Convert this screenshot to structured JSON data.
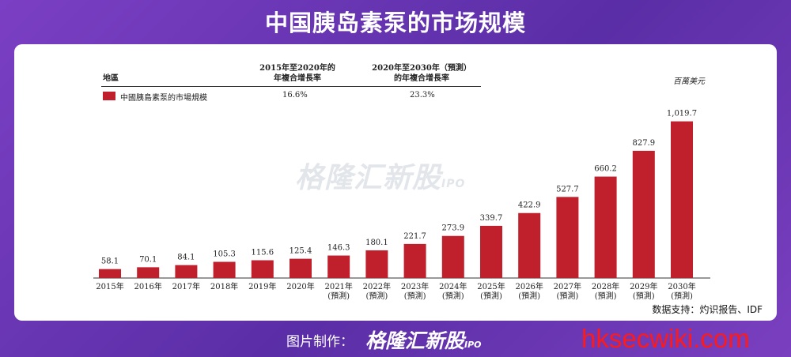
{
  "page": {
    "title": "中国胰岛素泵的市场规模",
    "footer_label": "图片制作：",
    "footer_brand": "格隆汇新股",
    "footer_brand_tag": "IPO",
    "watermark": "格隆汇新股",
    "watermark_tag": "IPO",
    "site_watermark": "hksecwiki.com",
    "source": "数据支持：灼识报告、IDF",
    "unit": "百萬美元"
  },
  "legend": {
    "region_header": "地區",
    "cagr1_header_line1": "2015年至2020年的",
    "cagr1_header_line2": "年複合增長率",
    "cagr2_header_line1": "2020年至2030年（預測）",
    "cagr2_header_line2": "的年複合增長率",
    "series_label": "中國胰島素泵的市場規模",
    "cagr1": "16.6%",
    "cagr2": "23.3%",
    "color": "#c0202c"
  },
  "chart_data": {
    "type": "bar",
    "categories": [
      "2015年",
      "2016年",
      "2017年",
      "2018年",
      "2019年",
      "2020年",
      "2021年\n(預測)",
      "2022年\n(預測)",
      "2023年\n(預測)",
      "2024年\n(預測)",
      "2025年\n(預測)",
      "2026年\n(預測)",
      "2027年\n(預測)",
      "2028年\n(預測)",
      "2029年\n(預測)",
      "2030年\n(預測)"
    ],
    "series": [
      {
        "name": "中國胰島素泵的市場規模",
        "values": [
          58.1,
          70.1,
          84.1,
          105.3,
          115.6,
          125.4,
          146.3,
          180.1,
          221.7,
          273.9,
          339.7,
          422.9,
          527.7,
          660.2,
          827.9,
          1019.7
        ],
        "labels": [
          "58.1",
          "70.1",
          "84.1",
          "105.3",
          "115.6",
          "125.4",
          "146.3",
          "180.1",
          "221.7",
          "273.9",
          "339.7",
          "422.9",
          "527.7",
          "660.2",
          "827.9",
          "1,019.7"
        ]
      }
    ],
    "ylim": [
      0,
      1100
    ],
    "ylabel": "百萬美元",
    "color": "#c0202c",
    "grid": false
  }
}
